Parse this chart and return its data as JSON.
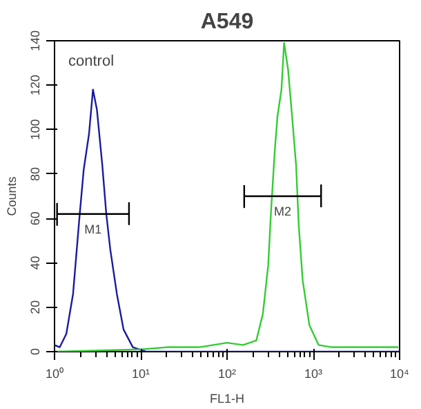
{
  "chart_data": {
    "type": "line",
    "title": "A549",
    "xlabel": "FL1-H",
    "ylabel": "Counts",
    "log": "x",
    "xlim": [
      1,
      10000
    ],
    "xticks": [
      {
        "value": 1,
        "label": "10⁰"
      },
      {
        "value": 10,
        "label": "10¹"
      },
      {
        "value": 100,
        "label": "10²"
      },
      {
        "value": 1000,
        "label": "10³"
      },
      {
        "value": 10000,
        "label": "10⁴"
      }
    ],
    "ylim": [
      0,
      140
    ],
    "yticks": [
      0,
      20,
      40,
      60,
      80,
      100,
      120,
      140
    ],
    "grid": false,
    "marker": "none",
    "line_style": "solid",
    "series": [
      {
        "color": "#1a1aa0",
        "x": [
          1.0,
          1.15,
          1.37,
          1.64,
          1.96,
          2.18,
          2.51,
          2.79,
          3.1,
          3.58,
          3.98,
          4.43,
          5.28,
          6.31,
          8.09,
          11.5,
          100,
          1000,
          10000
        ],
        "values": [
          3,
          2,
          8,
          26,
          62,
          82,
          98,
          118,
          109,
          84,
          62,
          46,
          26,
          10,
          2,
          0,
          0,
          0,
          0
        ]
      },
      {
        "color": "#33cc33",
        "x": [
          1.0,
          10,
          20,
          47.5,
          100,
          153,
          218,
          260,
          300,
          322,
          358,
          384,
          427,
          458,
          510,
          567,
          631,
          677,
          753,
          899,
          1150,
          1640,
          9660
        ],
        "values": [
          0,
          1,
          2,
          2,
          4,
          3,
          5,
          17,
          39,
          62,
          91,
          106,
          118,
          139,
          127,
          106,
          84,
          57,
          32,
          12,
          3,
          2,
          2
        ]
      },
      {
        "type": "line",
        "name": "M1",
        "color": "#000000",
        "x": [
          1.07,
          1.07,
          1.07,
          7.3,
          7.3,
          7.3
        ],
        "values": [
          67,
          57,
          62,
          62,
          67,
          57
        ]
      },
      {
        "type": "line",
        "name": "M2",
        "color": "#000000",
        "x": [
          158,
          158,
          158,
          1230,
          1230,
          1230
        ],
        "values": [
          75,
          65,
          70,
          70,
          75,
          65
        ]
      }
    ],
    "annotations": [
      "control"
    ]
  }
}
